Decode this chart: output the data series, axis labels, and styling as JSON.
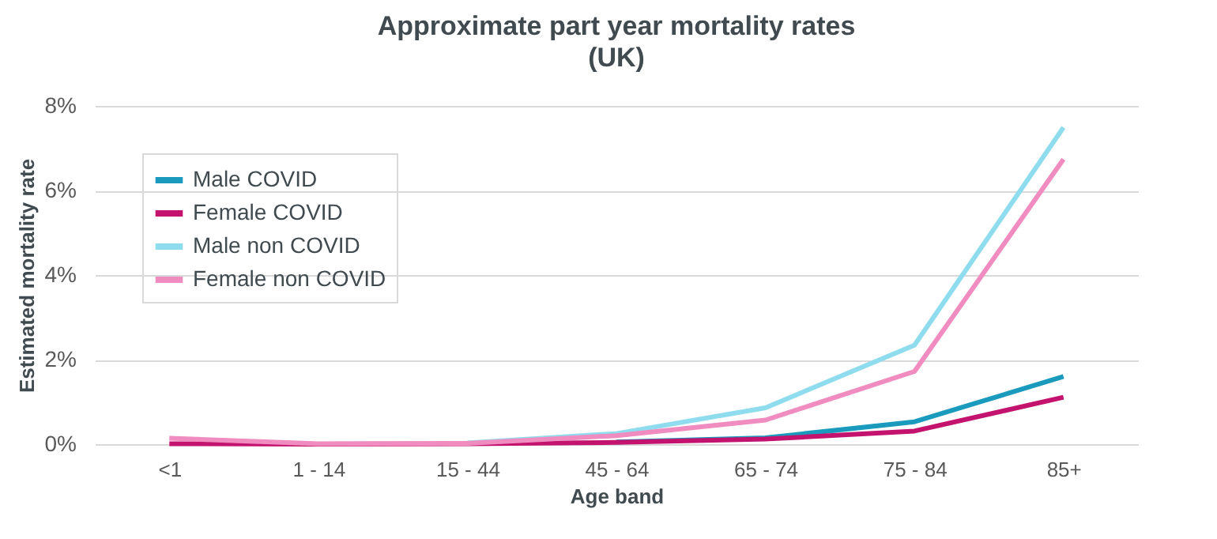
{
  "chart_data": {
    "type": "line",
    "title": "Approximate part year mortality rates",
    "subtitle": "(UK)",
    "xlabel": "Age band",
    "ylabel": "Estimated mortality rate",
    "categories": [
      "<1",
      "1 - 14",
      "15 - 44",
      "45 - 64",
      "65 - 74",
      "75 - 84",
      "85+"
    ],
    "series": [
      {
        "name": "Male COVID",
        "color": "#1a9bbd",
        "values": [
          null,
          null,
          null,
          0.05,
          0.15,
          0.53,
          1.6
        ]
      },
      {
        "name": "Female COVID",
        "color": "#c3136e",
        "values": [
          0.01,
          0.0,
          0.01,
          0.04,
          0.12,
          0.31,
          1.11
        ]
      },
      {
        "name": "Male non COVID",
        "color": "#8fdcee",
        "values": [
          null,
          null,
          0.03,
          0.25,
          0.86,
          2.34,
          7.49
        ]
      },
      {
        "name": "Female non COVID",
        "color": "#f08cbf",
        "values": [
          0.14,
          0.01,
          0.02,
          0.2,
          0.57,
          1.72,
          6.74
        ]
      }
    ],
    "ylim": [
      0,
      8
    ],
    "yticks": [
      {
        "value": 0,
        "label": "0%"
      },
      {
        "value": 2,
        "label": "2%"
      },
      {
        "value": 4,
        "label": "4%"
      },
      {
        "value": 6,
        "label": "6%"
      },
      {
        "value": 8,
        "label": "8%"
      }
    ],
    "grid": "y",
    "legend": "top left",
    "marker": "none",
    "line_style": "solid"
  }
}
